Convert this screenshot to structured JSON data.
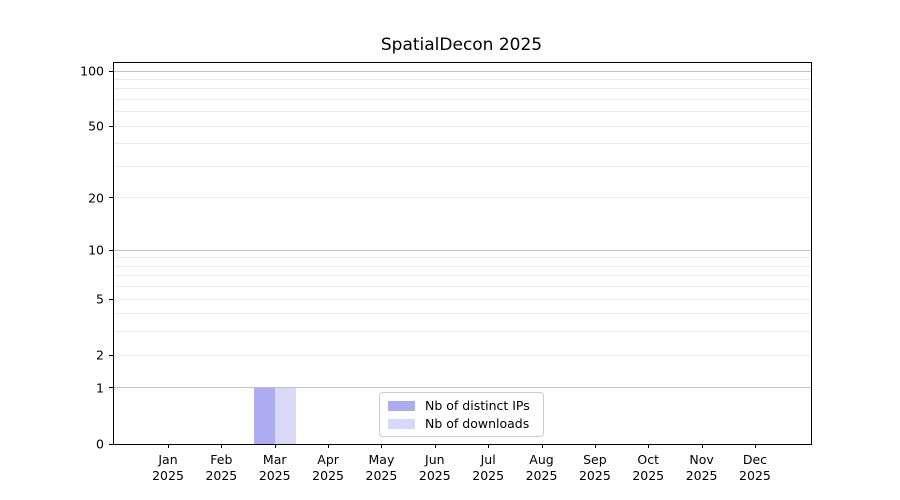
{
  "title": "SpatialDecon 2025",
  "chart_data": {
    "type": "bar",
    "title": "SpatialDecon 2025",
    "categories": [
      "Jan",
      "Feb",
      "Mar",
      "Apr",
      "May",
      "Jun",
      "Jul",
      "Aug",
      "Sep",
      "Oct",
      "Nov",
      "Dec"
    ],
    "category_year": "2025",
    "series": [
      {
        "name": "Nb of distinct IPs",
        "color": "#abacf1",
        "values": [
          0,
          0,
          1,
          0,
          0,
          0,
          0,
          0,
          0,
          0,
          0,
          0
        ]
      },
      {
        "name": "Nb of downloads",
        "color": "#d8d8f8",
        "values": [
          0,
          0,
          1,
          0,
          0,
          0,
          0,
          0,
          0,
          0,
          0,
          0
        ]
      }
    ],
    "yscale": "log1p",
    "ylim": [
      0,
      100
    ],
    "yticks": [
      0,
      1,
      2,
      5,
      10,
      20,
      50,
      100
    ],
    "major_gridlines": [
      1,
      10,
      100
    ],
    "minor_gridlines": [
      2,
      3,
      4,
      5,
      6,
      7,
      8,
      9,
      20,
      30,
      40,
      50,
      60,
      70,
      80,
      90
    ],
    "xlabel": "",
    "ylabel": "",
    "grid": true,
    "legend_position": "lower center"
  },
  "legend": {
    "items": [
      {
        "label": "Nb of distinct IPs",
        "color": "#abacf1"
      },
      {
        "label": "Nb of downloads",
        "color": "#d8d8f8"
      }
    ]
  },
  "colors": {
    "plot_border": "#000000",
    "major_grid": "#c3c3c3",
    "minor_grid": "#ececec",
    "background": "#ffffff"
  }
}
